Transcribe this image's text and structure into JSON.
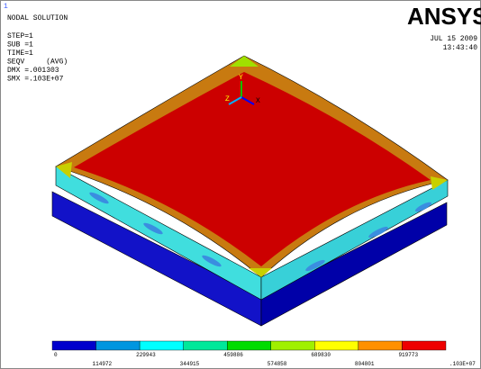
{
  "window_number": "1",
  "info": {
    "title": "NODAL SOLUTION",
    "lines": [
      "STEP=1",
      "SUB =1",
      "TIME=1",
      "SEQV     (AVG)",
      "DMX =.001303",
      "SMX =.103E+07"
    ]
  },
  "logo": "ANSYS",
  "date": "JUL 15 2009",
  "time": "13:43:40",
  "triad": {
    "y": "Y",
    "z": "Z",
    "x": "X"
  },
  "legend": {
    "colors": [
      "#0000cc",
      "#0096e0",
      "#00ffff",
      "#00e89a",
      "#00dc00",
      "#a0f000",
      "#ffff00",
      "#ff9000",
      "#ee0000"
    ],
    "upper_labels": [
      "0",
      "229943",
      "459886",
      "689830",
      "919773"
    ],
    "lower_labels": [
      "114972",
      "344915",
      "574858",
      "804801",
      ".103E+07"
    ]
  }
}
